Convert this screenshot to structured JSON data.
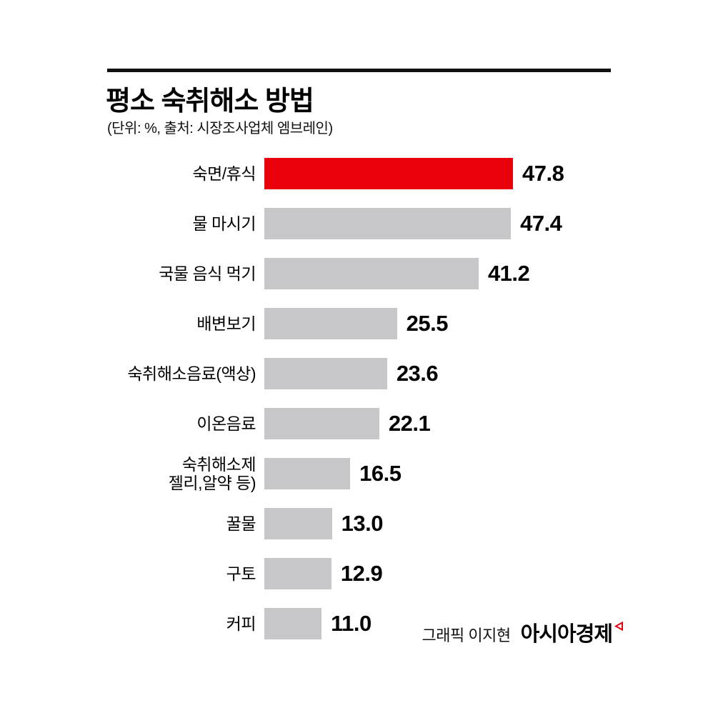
{
  "header": {
    "title": "평소 숙취해소 방법",
    "subtitle": "(단위: %, 출처: 시장조사업체 엠브레인)"
  },
  "chart_data": {
    "type": "bar",
    "orientation": "horizontal",
    "title": "평소 숙취해소 방법",
    "unit": "%",
    "source": "시장조사업체 엠브레인",
    "categories": [
      "숙면/휴식",
      "물 마시기",
      "국물 음식 먹기",
      "배변보기",
      "숙취해소음료(액상)",
      "이온음료",
      "숙취해소제\n젤리,알약 등)",
      "꿀물",
      "구토",
      "커피"
    ],
    "values": [
      47.8,
      47.4,
      41.2,
      25.5,
      23.6,
      22.1,
      16.5,
      13.0,
      12.9,
      11.0
    ],
    "value_decimals": 1,
    "highlight_index": 0,
    "xlim": [
      0,
      50
    ],
    "grid": false,
    "legend": "none"
  },
  "footer": {
    "credit": "그래픽 이지현",
    "brand": "아시아경제"
  },
  "colors": {
    "highlight": "#e8000b",
    "bar": "#c7c7c9",
    "rule": "#111111",
    "text": "#000000"
  }
}
